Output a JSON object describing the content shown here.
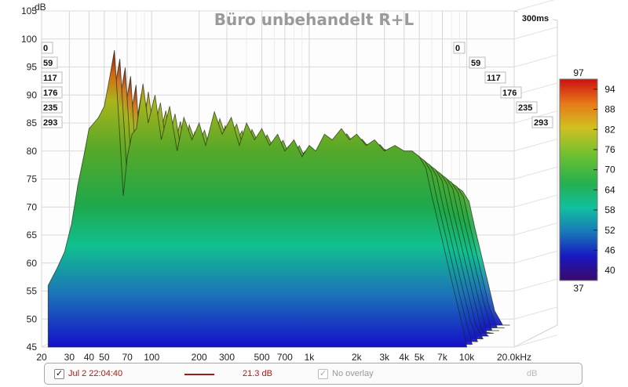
{
  "chart_data": {
    "type": "area",
    "title": "Büro unbehandelt R+L",
    "time_range_label": "300ms",
    "ylabel": "dB",
    "xlabel": "",
    "ylim": [
      45,
      105
    ],
    "xlim": [
      20,
      20000
    ],
    "x_scale": "log",
    "y_ticks": [
      "105",
      "100",
      "95",
      "90",
      "85",
      "80",
      "75",
      "70",
      "65",
      "60",
      "55",
      "50",
      "45"
    ],
    "x_ticks": [
      {
        "label": "20",
        "value": 20
      },
      {
        "label": "30",
        "value": 30
      },
      {
        "label": "40",
        "value": 40
      },
      {
        "label": "50",
        "value": 50
      },
      {
        "label": "70",
        "value": 70
      },
      {
        "label": "100",
        "value": 100
      },
      {
        "label": "200",
        "value": 200
      },
      {
        "label": "300",
        "value": 300
      },
      {
        "label": "500",
        "value": 500
      },
      {
        "label": "700",
        "value": 700
      },
      {
        "label": "1k",
        "value": 1000
      },
      {
        "label": "2k",
        "value": 2000
      },
      {
        "label": "3k",
        "value": 3000
      },
      {
        "label": "4k",
        "value": 4000
      },
      {
        "label": "5k",
        "value": 5000
      },
      {
        "label": "7k",
        "value": 7000
      },
      {
        "label": "10k",
        "value": 10000
      },
      {
        "label": "20.0kHz",
        "value": 20000
      }
    ],
    "time_slices_ms": [
      "0",
      "59",
      "117",
      "176",
      "235",
      "293"
    ],
    "colorbar": {
      "min": "37",
      "max": "97",
      "ticks": [
        "94",
        "88",
        "82",
        "76",
        "70",
        "64",
        "58",
        "52",
        "46",
        "40"
      ]
    },
    "front_slice": {
      "freq_hz": [
        22,
        25,
        28,
        31,
        34,
        37,
        40,
        43,
        46,
        50,
        54,
        58,
        62,
        66,
        70,
        75,
        80,
        88,
        95,
        105,
        115,
        130,
        145,
        160,
        180,
        200,
        220,
        250,
        280,
        320,
        360,
        400,
        450,
        500,
        560,
        630,
        700,
        800,
        900,
        1000,
        1100,
        1250,
        1400,
        1600,
        1800,
        2000,
        2300,
        2600,
        3000,
        3500,
        4000,
        4500,
        5000,
        5500,
        6000,
        7000,
        8000,
        9000,
        10000
      ],
      "db": [
        56,
        59,
        62,
        67,
        74,
        79,
        84,
        85,
        86,
        88,
        93,
        98,
        85,
        72,
        79,
        83,
        84,
        92,
        85,
        90,
        82,
        88,
        80,
        86,
        82,
        85,
        81,
        87,
        83,
        86,
        81,
        85,
        82,
        84,
        81,
        83,
        80,
        82,
        79,
        81,
        80,
        83,
        82,
        84,
        82,
        83,
        81,
        82,
        80,
        81,
        80,
        80,
        79,
        77,
        72,
        64,
        57,
        51,
        45
      ]
    }
  },
  "legend": {
    "checked_mark": "✓",
    "date_text": "Jul 2 22:04:40",
    "level_text": "21.3 dB",
    "overlay_text": "No overlay",
    "unit_text": "dB",
    "trace_color": "#9b1c1c"
  }
}
